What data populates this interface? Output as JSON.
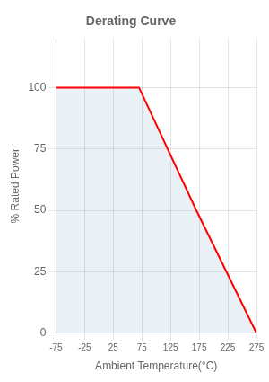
{
  "chart_data": {
    "type": "line",
    "title": "Derating Curve",
    "x_label": "Ambient Temperature(°C)",
    "y_label": "% Rated Power",
    "x": [
      -75,
      70,
      170,
      275
    ],
    "values": [
      100,
      100,
      50,
      0
    ],
    "color": "#ff0000",
    "line_style": "solid",
    "xlim": [
      -75,
      275
    ],
    "ylim": [
      0,
      120
    ],
    "xticks": [
      -75,
      -25,
      25,
      75,
      125,
      175,
      225,
      275
    ],
    "yticks": [
      0,
      25,
      50,
      75,
      100
    ],
    "grid": true
  }
}
